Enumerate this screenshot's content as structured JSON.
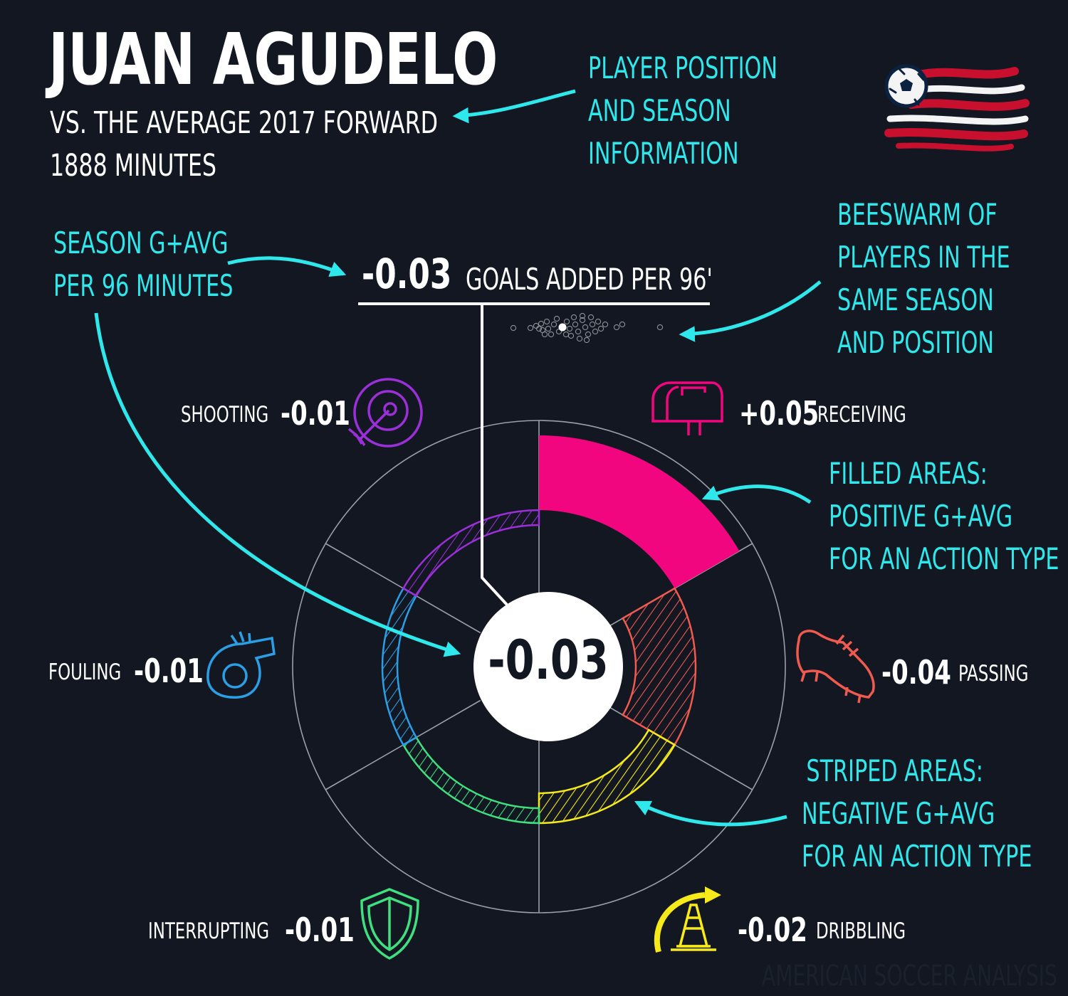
{
  "header": {
    "player_name": "JUAN AGUDELO",
    "subtitle": "VS. THE AVERAGE 2017 FORWARD",
    "minutes": "1888 MINUTES"
  },
  "annotations": {
    "position_note": [
      "PLAYER POSITION",
      "AND SEASON",
      "INFORMATION"
    ],
    "gavg_note": [
      "SEASON G+AVG",
      "PER 96 MINUTES"
    ],
    "beeswarm_note": [
      "BEESWARM OF",
      "PLAYERS IN THE",
      "SAME SEASON",
      "AND POSITION"
    ],
    "filled_note": [
      "FILLED AREAS:",
      "POSITIVE G+AVG",
      "FOR AN ACTION TYPE"
    ],
    "striped_note": [
      "STRIPED AREAS:",
      "NEGATIVE G+AVG",
      "FOR AN ACTION TYPE"
    ]
  },
  "total": {
    "value": "-0.03",
    "label": "GOALS ADDED PER 96'"
  },
  "center_value": "-0.03",
  "watermark": "AMERICAN SOCCER ANALYSIS",
  "colors": {
    "background": "#121721",
    "accent": "#2fe8ec",
    "receiving": "#f2067f",
    "passing": "#f05a4f",
    "dribbling": "#f6ea1b",
    "interrupting": "#3fe07f",
    "fouling": "#2b9fe6",
    "shooting": "#9b2fd8"
  },
  "chart_data": {
    "type": "radial-bar",
    "metric": "G+AVG per 96 minutes",
    "categories": [
      "RECEIVING",
      "PASSING",
      "DRIBBLING",
      "INTERRUPTING",
      "FOULING",
      "SHOOTING"
    ],
    "values": [
      0.05,
      -0.04,
      -0.02,
      -0.01,
      -0.01,
      -0.01
    ],
    "value_labels": [
      "+0.05",
      "-0.04",
      "-0.02",
      "-0.01",
      "-0.01",
      "-0.01"
    ],
    "icons": [
      "mailbox-icon",
      "cleat-icon",
      "cone-icon",
      "shield-icon",
      "whistle-icon",
      "target-icon"
    ],
    "total": -0.03,
    "beeswarm_highlight": -0.03
  }
}
